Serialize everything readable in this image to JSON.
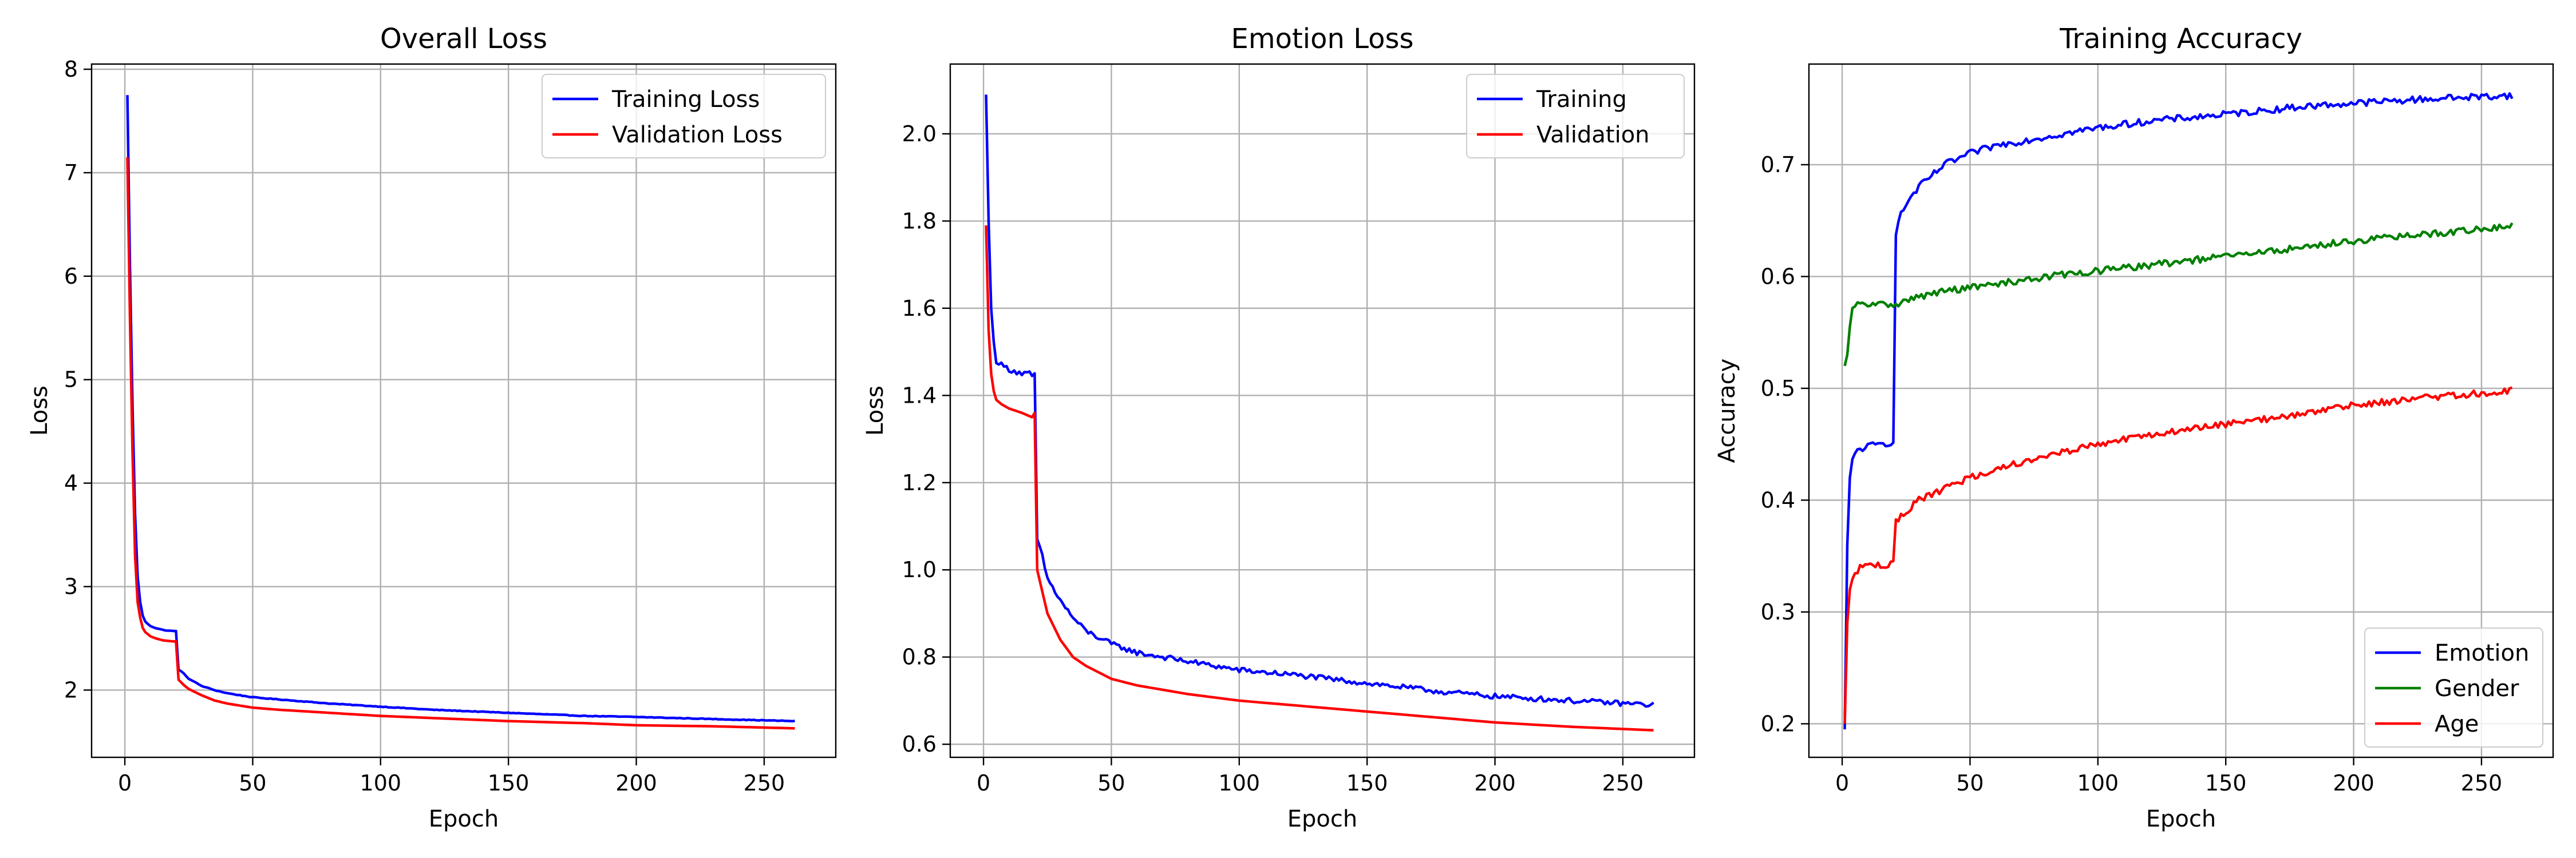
{
  "chart_data": [
    {
      "type": "line",
      "title": "Overall Loss",
      "xlabel": "Epoch",
      "ylabel": "Loss",
      "xlim": [
        -13,
        278
      ],
      "ylim": [
        1.35,
        8.05
      ],
      "xticks": [
        0,
        50,
        100,
        150,
        200,
        250
      ],
      "yticks": [
        2,
        3,
        4,
        5,
        6,
        7,
        8
      ],
      "grid": true,
      "legend_position": "top-right",
      "series": [
        {
          "name": "Training Loss",
          "color": "#0000ff",
          "noise": 0.003,
          "points": [
            [
              1,
              7.75
            ],
            [
              2,
              6.1
            ],
            [
              3,
              4.75
            ],
            [
              4,
              3.7
            ],
            [
              5,
              3.1
            ],
            [
              6,
              2.85
            ],
            [
              7,
              2.72
            ],
            [
              8,
              2.66
            ],
            [
              10,
              2.62
            ],
            [
              12,
              2.6
            ],
            [
              15,
              2.58
            ],
            [
              19,
              2.57
            ],
            [
              20,
              2.57
            ],
            [
              21,
              2.2
            ],
            [
              23,
              2.16
            ],
            [
              25,
              2.11
            ],
            [
              30,
              2.04
            ],
            [
              35,
              2.0
            ],
            [
              40,
              1.97
            ],
            [
              50,
              1.93
            ],
            [
              60,
              1.91
            ],
            [
              80,
              1.87
            ],
            [
              100,
              1.84
            ],
            [
              120,
              1.81
            ],
            [
              150,
              1.78
            ],
            [
              180,
              1.75
            ],
            [
              200,
              1.74
            ],
            [
              230,
              1.72
            ],
            [
              262,
              1.7
            ]
          ]
        },
        {
          "name": "Validation Loss",
          "color": "#ff0000",
          "noise": 0.0,
          "points": [
            [
              1,
              7.15
            ],
            [
              2,
              5.6
            ],
            [
              3,
              4.3
            ],
            [
              4,
              3.3
            ],
            [
              5,
              2.85
            ],
            [
              6,
              2.7
            ],
            [
              7,
              2.6
            ],
            [
              8,
              2.56
            ],
            [
              10,
              2.52
            ],
            [
              12,
              2.5
            ],
            [
              15,
              2.48
            ],
            [
              19,
              2.47
            ],
            [
              20,
              2.47
            ],
            [
              21,
              2.1
            ],
            [
              23,
              2.05
            ],
            [
              25,
              2.01
            ],
            [
              30,
              1.95
            ],
            [
              35,
              1.9
            ],
            [
              40,
              1.87
            ],
            [
              50,
              1.83
            ],
            [
              60,
              1.81
            ],
            [
              80,
              1.78
            ],
            [
              100,
              1.75
            ],
            [
              120,
              1.73
            ],
            [
              150,
              1.7
            ],
            [
              180,
              1.68
            ],
            [
              200,
              1.66
            ],
            [
              230,
              1.65
            ],
            [
              262,
              1.63
            ]
          ]
        }
      ]
    },
    {
      "type": "line",
      "title": "Emotion Loss",
      "xlabel": "Epoch",
      "ylabel": "Loss",
      "xlim": [
        -13,
        278
      ],
      "ylim": [
        0.57,
        2.16
      ],
      "xticks": [
        0,
        50,
        100,
        150,
        200,
        250
      ],
      "yticks": [
        0.6,
        0.8,
        1.0,
        1.2,
        1.4,
        1.6,
        1.8,
        2.0
      ],
      "grid": true,
      "legend_position": "top-right",
      "series": [
        {
          "name": "Training",
          "color": "#0000ff",
          "noise": 0.006,
          "points": [
            [
              1,
              2.09
            ],
            [
              2,
              1.8
            ],
            [
              3,
              1.6
            ],
            [
              4,
              1.52
            ],
            [
              5,
              1.48
            ],
            [
              7,
              1.47
            ],
            [
              10,
              1.46
            ],
            [
              15,
              1.45
            ],
            [
              18,
              1.45
            ],
            [
              19,
              1.44
            ],
            [
              20,
              1.45
            ],
            [
              21,
              1.07
            ],
            [
              23,
              1.03
            ],
            [
              25,
              0.98
            ],
            [
              30,
              0.93
            ],
            [
              35,
              0.89
            ],
            [
              40,
              0.86
            ],
            [
              50,
              0.83
            ],
            [
              60,
              0.81
            ],
            [
              80,
              0.79
            ],
            [
              100,
              0.77
            ],
            [
              120,
              0.76
            ],
            [
              150,
              0.74
            ],
            [
              180,
              0.72
            ],
            [
              200,
              0.71
            ],
            [
              230,
              0.7
            ],
            [
              262,
              0.69
            ]
          ]
        },
        {
          "name": "Validation",
          "color": "#ff0000",
          "noise": 0.0,
          "points": [
            [
              1,
              1.79
            ],
            [
              2,
              1.55
            ],
            [
              3,
              1.45
            ],
            [
              4,
              1.41
            ],
            [
              5,
              1.39
            ],
            [
              7,
              1.38
            ],
            [
              10,
              1.37
            ],
            [
              15,
              1.36
            ],
            [
              19,
              1.35
            ],
            [
              20,
              1.36
            ],
            [
              21,
              1.0
            ],
            [
              23,
              0.95
            ],
            [
              25,
              0.9
            ],
            [
              30,
              0.84
            ],
            [
              35,
              0.8
            ],
            [
              40,
              0.78
            ],
            [
              50,
              0.75
            ],
            [
              60,
              0.735
            ],
            [
              80,
              0.715
            ],
            [
              100,
              0.7
            ],
            [
              120,
              0.69
            ],
            [
              150,
              0.675
            ],
            [
              180,
              0.66
            ],
            [
              200,
              0.65
            ],
            [
              230,
              0.64
            ],
            [
              262,
              0.632
            ]
          ]
        }
      ]
    },
    {
      "type": "line",
      "title": "Training Accuracy",
      "xlabel": "Epoch",
      "ylabel": "Accuracy",
      "xlim": [
        -13,
        278
      ],
      "ylim": [
        0.17,
        0.79
      ],
      "xticks": [
        0,
        50,
        100,
        150,
        200,
        250
      ],
      "yticks": [
        0.2,
        0.3,
        0.4,
        0.5,
        0.6,
        0.7
      ],
      "grid": true,
      "legend_position": "bottom-right",
      "series": [
        {
          "name": "Emotion",
          "color": "#0000ff",
          "noise": 0.003,
          "points": [
            [
              1,
              0.195
            ],
            [
              2,
              0.36
            ],
            [
              3,
              0.42
            ],
            [
              4,
              0.435
            ],
            [
              6,
              0.445
            ],
            [
              10,
              0.448
            ],
            [
              15,
              0.45
            ],
            [
              20,
              0.452
            ],
            [
              21,
              0.64
            ],
            [
              23,
              0.655
            ],
            [
              25,
              0.665
            ],
            [
              30,
              0.68
            ],
            [
              35,
              0.69
            ],
            [
              40,
              0.7
            ],
            [
              50,
              0.71
            ],
            [
              60,
              0.717
            ],
            [
              80,
              0.725
            ],
            [
              100,
              0.733
            ],
            [
              120,
              0.739
            ],
            [
              150,
              0.745
            ],
            [
              180,
              0.752
            ],
            [
              200,
              0.755
            ],
            [
              230,
              0.759
            ],
            [
              262,
              0.762
            ]
          ]
        },
        {
          "name": "Gender",
          "color": "#008000",
          "noise": 0.003,
          "points": [
            [
              1,
              0.52
            ],
            [
              2,
              0.53
            ],
            [
              3,
              0.555
            ],
            [
              4,
              0.57
            ],
            [
              6,
              0.575
            ],
            [
              10,
              0.575
            ],
            [
              15,
              0.575
            ],
            [
              20,
              0.575
            ],
            [
              25,
              0.578
            ],
            [
              30,
              0.582
            ],
            [
              40,
              0.587
            ],
            [
              50,
              0.59
            ],
            [
              60,
              0.593
            ],
            [
              80,
              0.6
            ],
            [
              100,
              0.605
            ],
            [
              120,
              0.61
            ],
            [
              150,
              0.618
            ],
            [
              180,
              0.626
            ],
            [
              200,
              0.632
            ],
            [
              230,
              0.638
            ],
            [
              262,
              0.645
            ]
          ]
        },
        {
          "name": "Age",
          "color": "#ff0000",
          "noise": 0.003,
          "points": [
            [
              1,
              0.2
            ],
            [
              2,
              0.29
            ],
            [
              3,
              0.32
            ],
            [
              5,
              0.335
            ],
            [
              7,
              0.34
            ],
            [
              10,
              0.342
            ],
            [
              15,
              0.342
            ],
            [
              19,
              0.342
            ],
            [
              20,
              0.343
            ],
            [
              21,
              0.38
            ],
            [
              25,
              0.39
            ],
            [
              30,
              0.4
            ],
            [
              40,
              0.41
            ],
            [
              50,
              0.42
            ],
            [
              60,
              0.428
            ],
            [
              80,
              0.44
            ],
            [
              100,
              0.45
            ],
            [
              120,
              0.458
            ],
            [
              150,
              0.468
            ],
            [
              180,
              0.477
            ],
            [
              200,
              0.485
            ],
            [
              230,
              0.492
            ],
            [
              262,
              0.498
            ]
          ]
        }
      ]
    }
  ]
}
